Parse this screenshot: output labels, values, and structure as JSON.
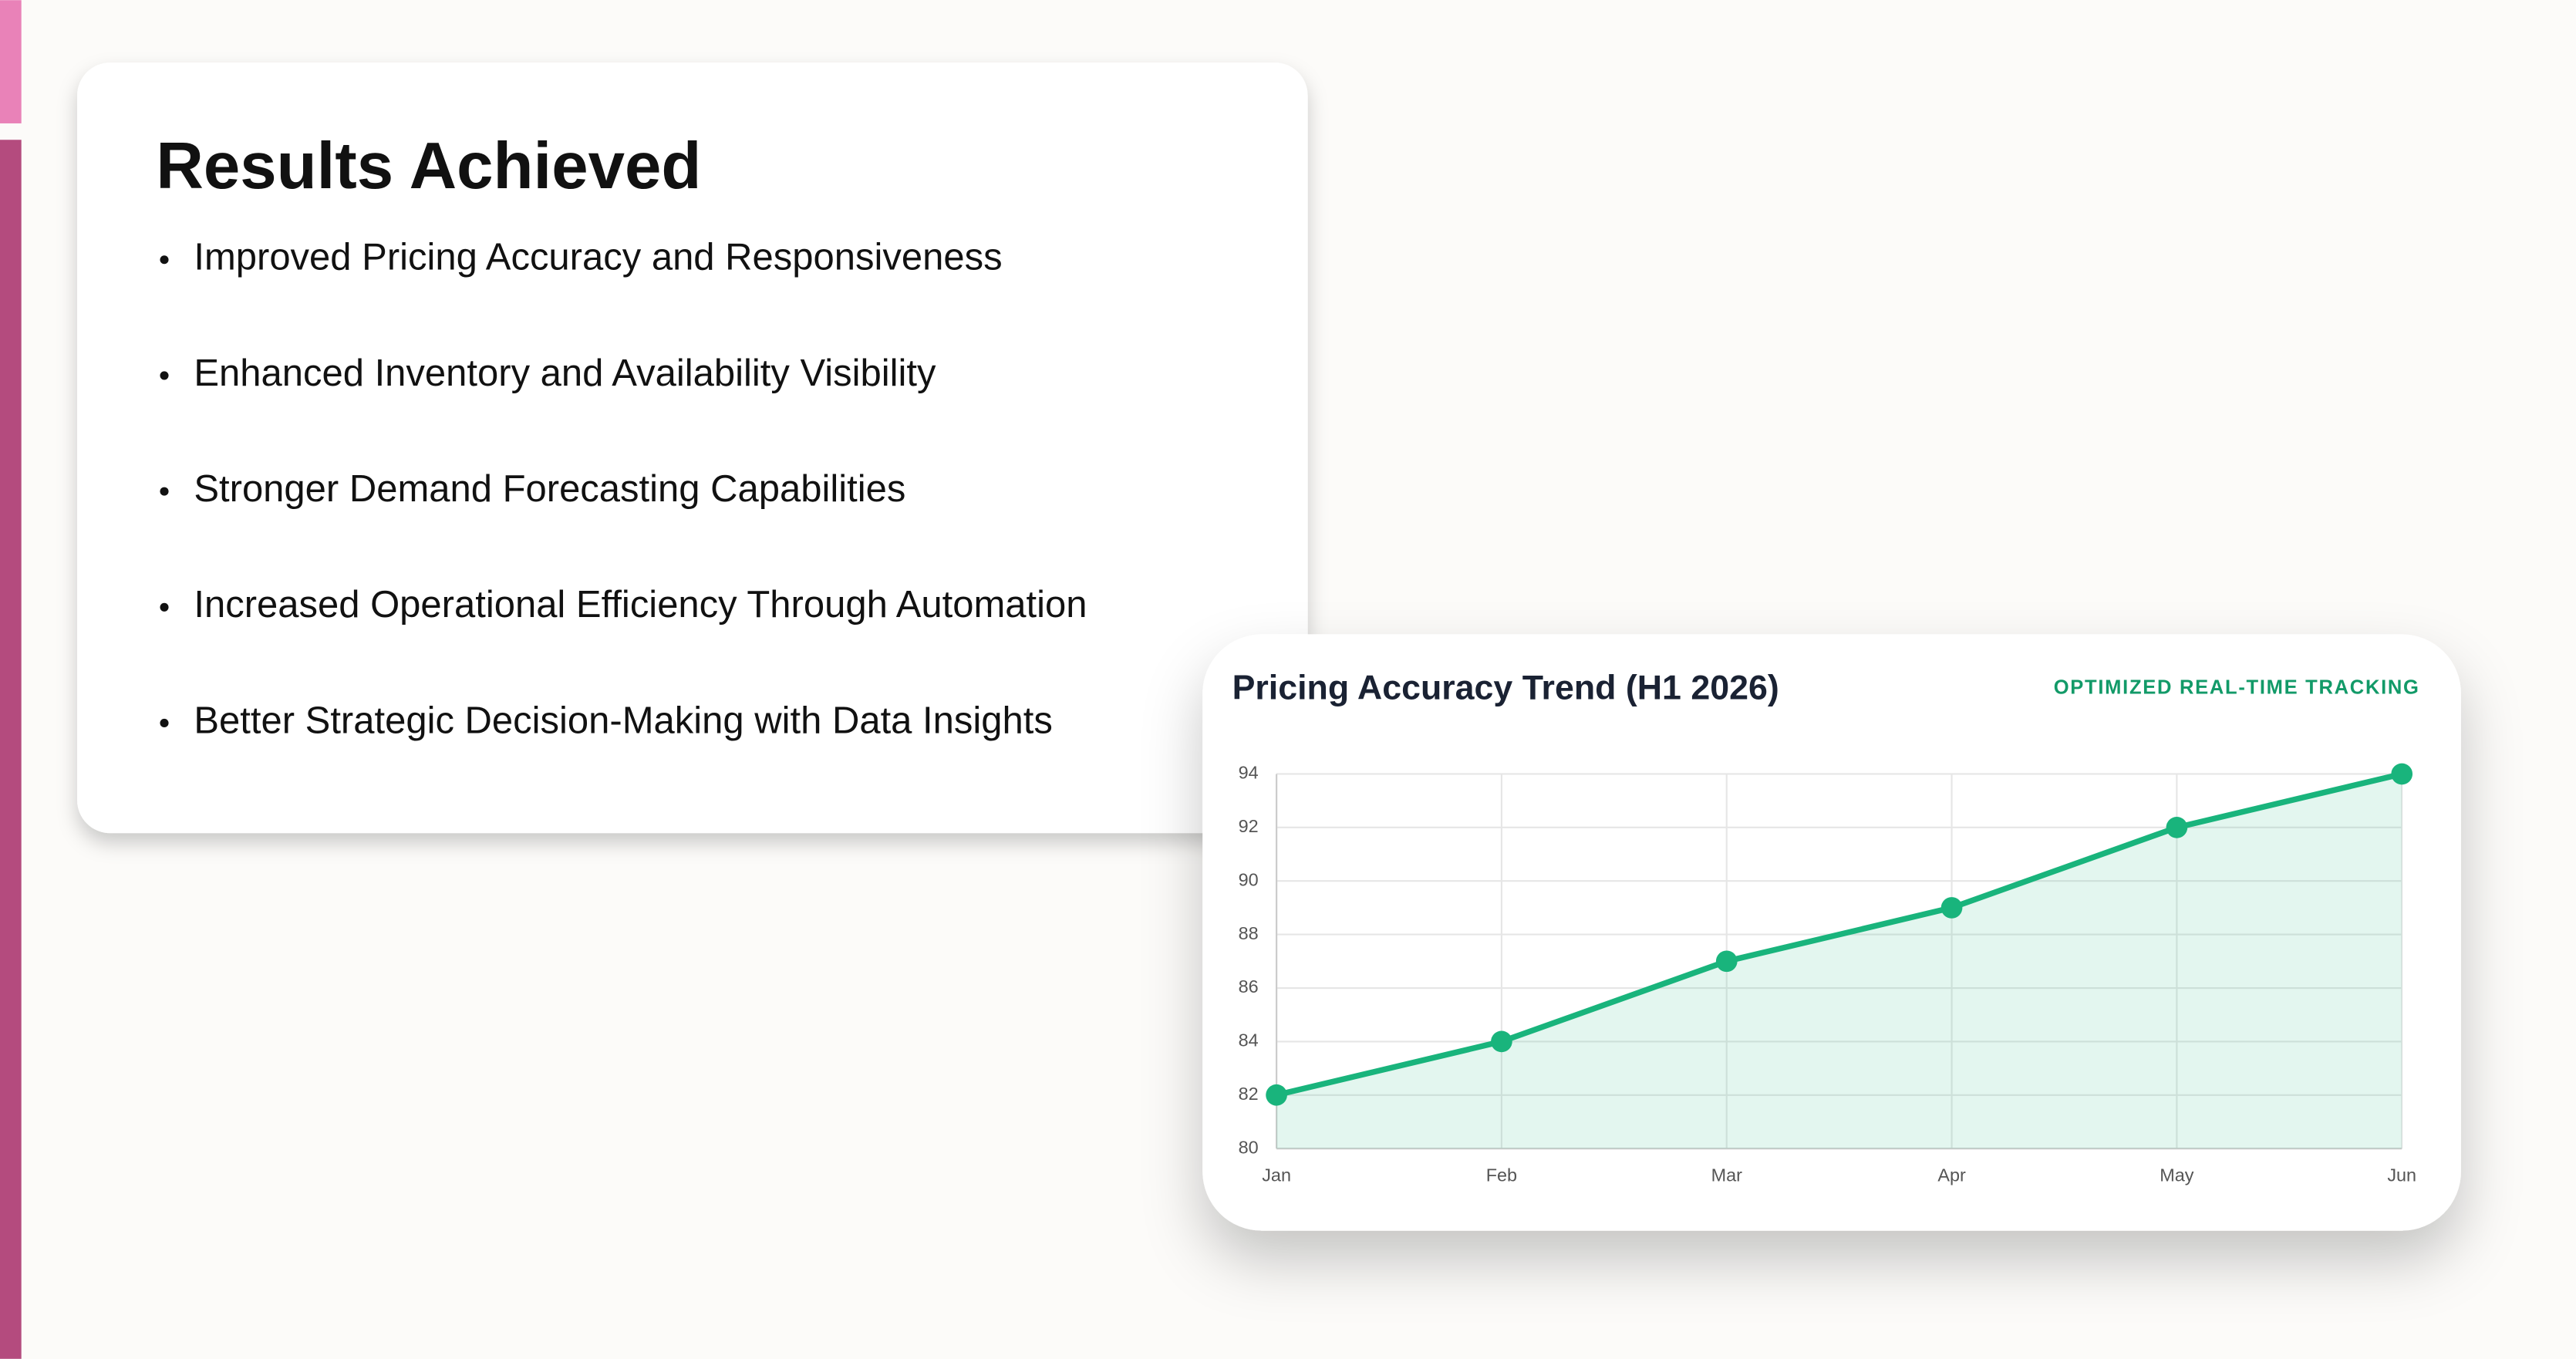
{
  "card": {
    "title": "Results Achieved",
    "items": [
      "Improved Pricing Accuracy and Responsiveness",
      "Enhanced Inventory and Availability Visibility",
      "Stronger Demand Forecasting Capabilities",
      "Increased Operational Efficiency Through Automation",
      "Better Strategic Decision-Making with Data Insights"
    ]
  },
  "chart_data": {
    "type": "line",
    "title": "Pricing Accuracy Trend (H1 2026)",
    "subtitle": "OPTIMIZED REAL-TIME TRACKING",
    "categories": [
      "Jan",
      "Feb",
      "Mar",
      "Apr",
      "May",
      "Jun"
    ],
    "series": [
      {
        "color": "#19b47c",
        "values": [
          82,
          84,
          87,
          89,
          92,
          94
        ]
      }
    ],
    "ylim": [
      80,
      94
    ],
    "yticks": [
      80,
      82,
      84,
      86,
      88,
      90,
      92,
      94
    ],
    "grid": true,
    "area": true
  }
}
